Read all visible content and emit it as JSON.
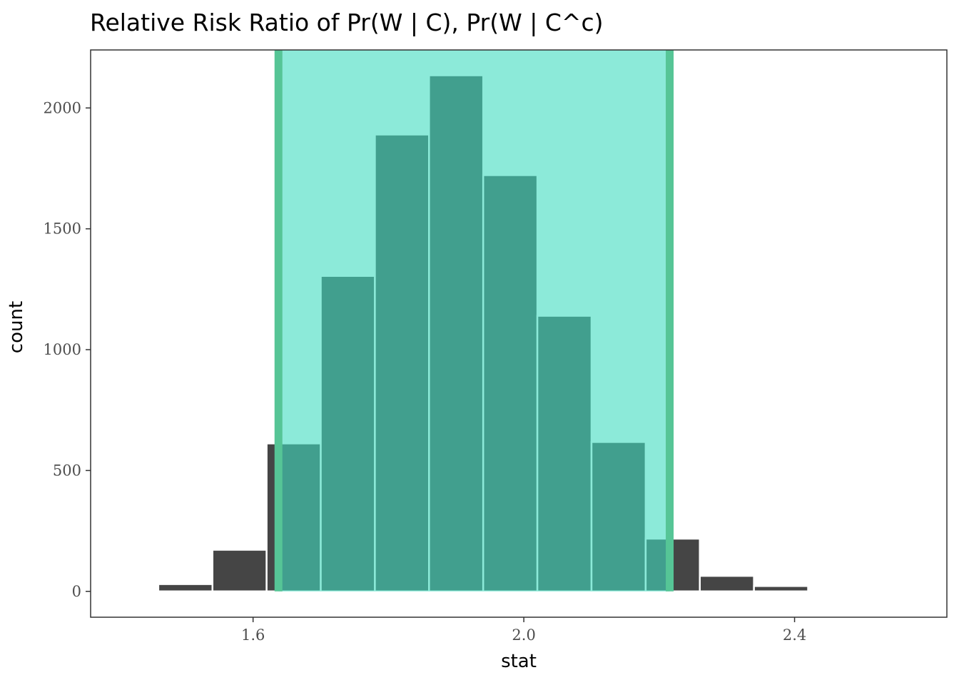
{
  "chart_data": {
    "type": "histogram",
    "title": "Relative Risk Ratio of Pr(W | C), Pr(W | C^c)",
    "xlabel": "stat",
    "ylabel": "count",
    "xlim": [
      1.36,
      2.625
    ],
    "ylim": [
      -107,
      2240
    ],
    "x_ticks": [
      1.6,
      2.0,
      2.4
    ],
    "x_tick_labels": [
      "1.6",
      "2.0",
      "2.4"
    ],
    "y_ticks": [
      0,
      500,
      1000,
      1500,
      2000
    ],
    "y_tick_labels": [
      "0",
      "500",
      "1000",
      "1500",
      "2000"
    ],
    "bins": [
      {
        "start": 1.46,
        "end": 1.54,
        "count": 30
      },
      {
        "start": 1.54,
        "end": 1.62,
        "count": 172
      },
      {
        "start": 1.62,
        "end": 1.7,
        "count": 612
      },
      {
        "start": 1.7,
        "end": 1.78,
        "count": 1305
      },
      {
        "start": 1.78,
        "end": 1.86,
        "count": 1890
      },
      {
        "start": 1.86,
        "end": 1.94,
        "count": 2135
      },
      {
        "start": 1.94,
        "end": 2.02,
        "count": 1722
      },
      {
        "start": 2.02,
        "end": 2.1,
        "count": 1140
      },
      {
        "start": 2.1,
        "end": 2.18,
        "count": 618
      },
      {
        "start": 2.18,
        "end": 2.26,
        "count": 218
      },
      {
        "start": 2.26,
        "end": 2.34,
        "count": 64
      },
      {
        "start": 2.34,
        "end": 2.42,
        "count": 22
      }
    ],
    "ci": {
      "lower": 1.6375,
      "upper": 2.2155
    },
    "colors": {
      "bar": "#454545",
      "bar_outline": "#ffffff",
      "ci_fill": "#40dcc0",
      "ci_fill_opacity": 0.6,
      "ci_line": "#56c596",
      "panel_border": "#333333",
      "tick": "#333333"
    }
  }
}
